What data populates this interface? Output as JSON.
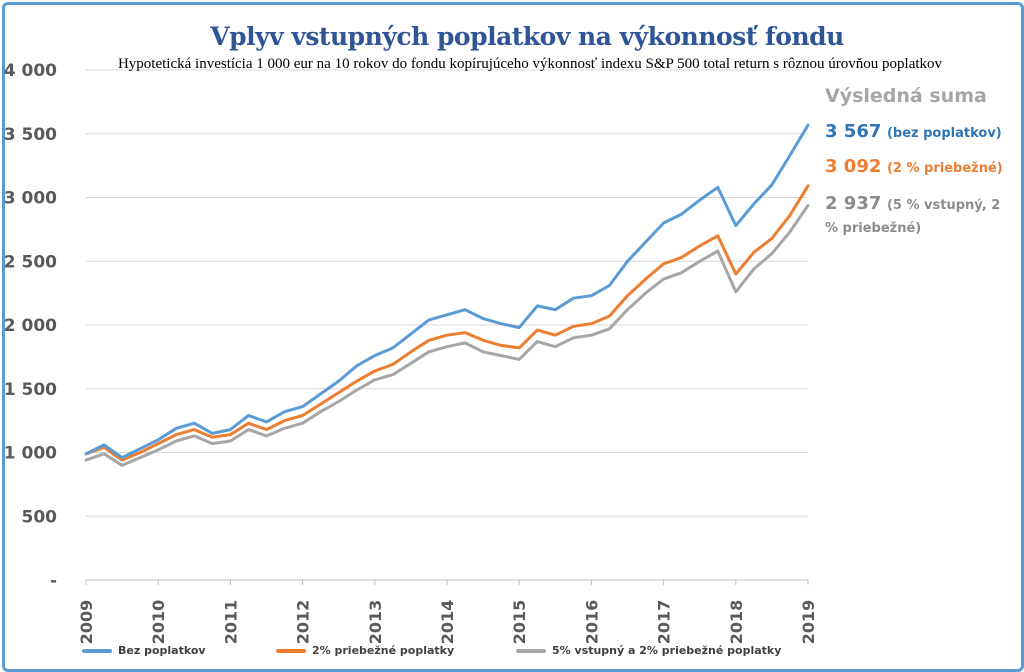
{
  "header": {
    "title": "Vplyv vstupných poplatkov na výkonnosť fondu",
    "subtitle": "Hypotetická investícia 1 000 eur na 10 rokov do fondu kopírujúceho výkonnosť indexu S&P 500 total return s rôznou úrovňou poplatkov"
  },
  "results": {
    "heading": "Výsledná suma",
    "items": [
      {
        "value": "3 567",
        "label": "(bez poplatkov)",
        "color": "#2e75b6"
      },
      {
        "value": "3 092",
        "label": "(2 % priebežné)",
        "color": "#ed7d31"
      },
      {
        "value": "2 937",
        "label": "(5 % vstupný, 2 % priebežné)",
        "color": "#8c8c8c"
      }
    ]
  },
  "chart_data": {
    "type": "line",
    "title": "Vplyv vstupných poplatkov na výkonnosť fondu",
    "subtitle": "Hypotetická investícia 1 000 eur na 10 rokov do fondu kopírujúceho výkonnosť indexu S&P 500 total return s rôznou úrovňou poplatkov",
    "xlabel": "",
    "ylabel": "",
    "xlim": [
      2009,
      2019
    ],
    "ylim": [
      0,
      4000
    ],
    "grid": "horizontal",
    "legend_position": "bottom",
    "x_tick_labels": [
      "2009",
      "2010",
      "2011",
      "2012",
      "2013",
      "2014",
      "2015",
      "2016",
      "2017",
      "2018",
      "2019"
    ],
    "y_tick_labels": [
      "-",
      "500",
      "1 000",
      "1 500",
      "2 000",
      "2 500",
      "3 000",
      "3 500",
      "4 000"
    ],
    "x": [
      2009.0,
      2009.25,
      2009.5,
      2009.75,
      2010.0,
      2010.25,
      2010.5,
      2010.75,
      2011.0,
      2011.25,
      2011.5,
      2011.75,
      2012.0,
      2012.25,
      2012.5,
      2012.75,
      2013.0,
      2013.25,
      2013.5,
      2013.75,
      2014.0,
      2014.25,
      2014.5,
      2014.75,
      2015.0,
      2015.25,
      2015.5,
      2015.75,
      2016.0,
      2016.25,
      2016.5,
      2016.75,
      2017.0,
      2017.25,
      2017.5,
      2017.75,
      2018.0,
      2018.25,
      2018.5,
      2018.75,
      2019.0
    ],
    "series": [
      {
        "name": "Bez poplatkov",
        "color": "#5b9bd5",
        "values": [
          990,
          1060,
          960,
          1030,
          1100,
          1190,
          1230,
          1150,
          1180,
          1290,
          1240,
          1320,
          1360,
          1460,
          1560,
          1680,
          1760,
          1820,
          1930,
          2040,
          2080,
          2120,
          2050,
          2010,
          1980,
          2150,
          2120,
          2210,
          2230,
          2310,
          2500,
          2650,
          2800,
          2870,
          2980,
          3080,
          2780,
          2950,
          3100,
          3330,
          3567
        ]
      },
      {
        "name": "2% priebežné poplatky",
        "color": "#ed7d31",
        "values": [
          990,
          1040,
          940,
          1000,
          1070,
          1140,
          1180,
          1120,
          1140,
          1230,
          1180,
          1250,
          1290,
          1380,
          1470,
          1560,
          1640,
          1690,
          1790,
          1880,
          1920,
          1940,
          1880,
          1840,
          1820,
          1960,
          1920,
          1990,
          2010,
          2070,
          2230,
          2360,
          2480,
          2530,
          2620,
          2700,
          2400,
          2570,
          2680,
          2860,
          3092
        ]
      },
      {
        "name": "5% vstupný a 2% priebežné poplatky",
        "color": "#a6a6a6",
        "values": [
          940,
          990,
          900,
          960,
          1020,
          1090,
          1130,
          1070,
          1090,
          1180,
          1130,
          1190,
          1230,
          1320,
          1400,
          1490,
          1570,
          1610,
          1700,
          1790,
          1830,
          1860,
          1790,
          1760,
          1730,
          1870,
          1830,
          1900,
          1920,
          1970,
          2120,
          2250,
          2360,
          2410,
          2500,
          2580,
          2260,
          2440,
          2560,
          2730,
          2937
        ]
      }
    ]
  }
}
